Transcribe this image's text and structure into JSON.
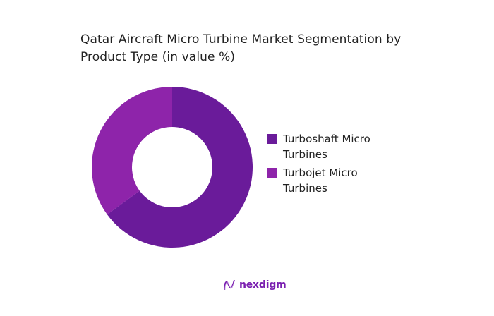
{
  "title": "Qatar Aircraft Micro Turbine Market Segmentation by Product Type (in value %)",
  "title_lines": [
    "Qatar Aircraft Micro Turbine Market Segmentation by",
    "Product Type (in value %)"
  ],
  "legend": [
    {
      "label": "Turboshaft Micro Turbines",
      "color": "#6a1b9a"
    },
    {
      "label": "Turbojet Micro Turbines",
      "color": "#8e24aa"
    }
  ],
  "logo": {
    "text": "nexdigm",
    "color": "#7a1fb0"
  },
  "chart_data": {
    "type": "pie",
    "variant": "donut",
    "title": "Qatar Aircraft Micro Turbine Market Segmentation by Product Type (in value %)",
    "categories": [
      "Turboshaft Micro Turbines",
      "Turbojet Micro Turbines"
    ],
    "values": [
      65,
      35
    ],
    "colors": [
      "#6a1b9a",
      "#8e24aa"
    ],
    "start_angle_deg": 0,
    "direction": "clockwise",
    "legend_position": "right",
    "data_labels": false
  }
}
